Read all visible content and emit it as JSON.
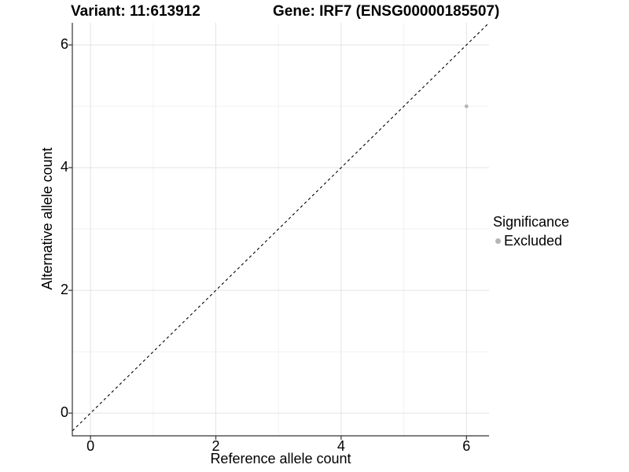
{
  "colors": {
    "background": "#ffffff",
    "grid_major": "#e3e3e3",
    "grid_minor": "#f1f1f1",
    "axis_line": "#333333",
    "tick_mark": "#333333",
    "text": "#000000",
    "reference_line": "#000000",
    "excluded_point": "#b5b5b5"
  },
  "chart_data": {
    "type": "scatter",
    "title_left": "Variant: 11:613912",
    "title_right": "Gene: IRF7 (ENSG00000185507)",
    "xlabel": "Reference allele count",
    "ylabel": "Alternative allele count",
    "xlim": [
      -0.29,
      6.36
    ],
    "ylim": [
      -0.37,
      6.36
    ],
    "x_ticks": [
      0,
      2,
      4,
      6
    ],
    "y_ticks": [
      0,
      2,
      4,
      6
    ],
    "x_minor_ticks": [
      1,
      3,
      5
    ],
    "y_minor_ticks": [
      1,
      3,
      5
    ],
    "grid": "major+minor",
    "legend_position": "right",
    "series": [
      {
        "name": "Excluded",
        "color": "#b5b5b5",
        "point_radius": 2.4,
        "points": [
          [
            6,
            5
          ]
        ]
      }
    ],
    "reference_line": {
      "type": "identity",
      "slope": 1,
      "intercept": 0,
      "style": "dashed",
      "color": "#000000"
    },
    "legend": {
      "title": "Significance",
      "items": [
        {
          "label": "Excluded",
          "color": "#b5b5b5"
        }
      ]
    }
  }
}
